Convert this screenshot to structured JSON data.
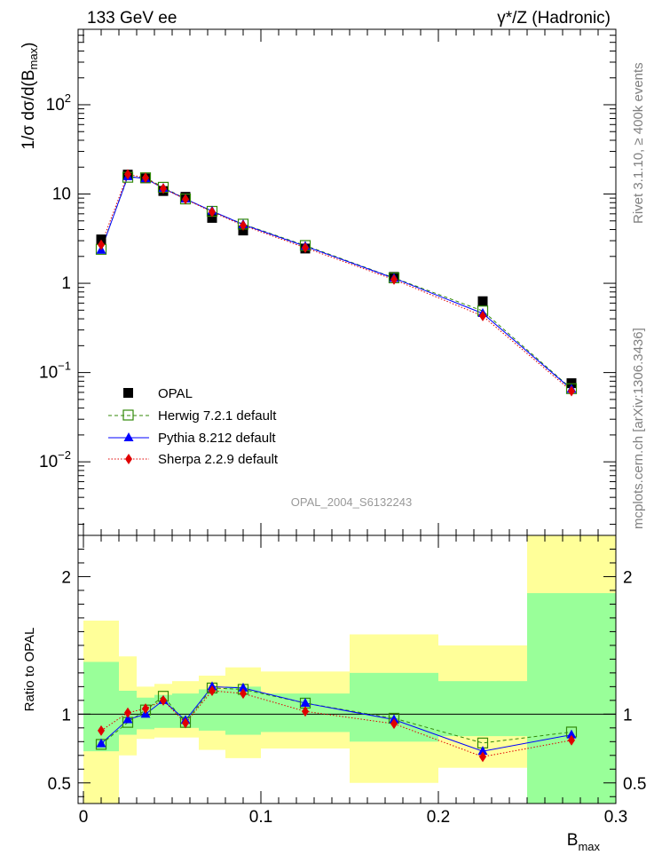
{
  "header": {
    "left": "133 GeV ee",
    "right": "γ*/Z (Hadronic)"
  },
  "side": {
    "rivet": "Rivet 3.1.10, ≥ 400k events",
    "source": "mcplots.cern.ch [arXiv:1306.3436]"
  },
  "watermark": "OPAL_2004_S6132243",
  "main": {
    "ylabel": "1/σ dσ/d(B_max)",
    "yscale": "log",
    "ylim": [
      0.0015,
      700
    ],
    "yticks": [
      {
        "value": 0.01,
        "base": "10",
        "exp": "−2"
      },
      {
        "value": 0.1,
        "base": "10",
        "exp": "−1"
      },
      {
        "value": 1,
        "base": "1",
        "exp": ""
      },
      {
        "value": 10,
        "base": "10",
        "exp": ""
      },
      {
        "value": 100,
        "base": "10",
        "exp": "2"
      }
    ]
  },
  "ratio": {
    "ylabel": "Ratio to OPAL",
    "ylim": [
      0.35,
      2.3
    ],
    "yticks": [
      {
        "value": 0.5,
        "label": "0.5"
      },
      {
        "value": 1,
        "label": "1"
      },
      {
        "value": 2,
        "label": "2"
      }
    ]
  },
  "xaxis": {
    "label": "B",
    "label_sub": "max",
    "xlim": [
      -0.003,
      0.3
    ],
    "ticks": [
      {
        "value": 0,
        "label": "0"
      },
      {
        "value": 0.1,
        "label": "0.1"
      },
      {
        "value": 0.2,
        "label": "0.2"
      },
      {
        "value": 0.3,
        "label": "0.3"
      }
    ]
  },
  "legend": [
    {
      "key": "opal",
      "label": "OPAL"
    },
    {
      "key": "herwig",
      "label": "Herwig 7.2.1 default"
    },
    {
      "key": "pythia",
      "label": "Pythia 8.212 default"
    },
    {
      "key": "sherpa",
      "label": "Sherpa 2.2.9 default"
    }
  ],
  "colors": {
    "herwig": "#338a0a",
    "pythia": "#0000ff",
    "sherpa": "#e00000",
    "band_inner": "#99ff99",
    "band_outer": "#ffff99"
  },
  "chart_data": {
    "type": "scatter",
    "title": "133 GeV ee — γ*/Z (Hadronic)",
    "xlabel": "B_max",
    "ylabel": "1/σ dσ/d(B_max)",
    "bins": [
      [
        0,
        0.02
      ],
      [
        0.02,
        0.03
      ],
      [
        0.03,
        0.04
      ],
      [
        0.04,
        0.05
      ],
      [
        0.05,
        0.065
      ],
      [
        0.065,
        0.08
      ],
      [
        0.08,
        0.1
      ],
      [
        0.1,
        0.15
      ],
      [
        0.15,
        0.2
      ],
      [
        0.2,
        0.25
      ],
      [
        0.25,
        0.3
      ]
    ],
    "x": [
      0.01,
      0.025,
      0.035,
      0.045,
      0.0575,
      0.0725,
      0.09,
      0.125,
      0.175,
      0.225,
      0.275
    ],
    "series": [
      {
        "name": "OPAL",
        "key": "opal",
        "values": [
          3.1,
          16.5,
          15.0,
          10.8,
          9.3,
          5.4,
          3.9,
          2.45,
          1.18,
          0.63,
          0.076
        ]
      },
      {
        "name": "Herwig 7.2.1 default",
        "key": "herwig",
        "values": [
          2.4,
          15.4,
          15.2,
          11.9,
          8.8,
          6.4,
          4.6,
          2.65,
          1.15,
          0.49,
          0.066
        ]
      },
      {
        "name": "Pythia 8.212 default",
        "key": "pythia",
        "values": [
          2.35,
          15.7,
          14.9,
          11.6,
          8.8,
          6.45,
          4.55,
          2.6,
          1.14,
          0.46,
          0.065
        ]
      },
      {
        "name": "Sherpa 2.2.9 default",
        "key": "sherpa",
        "values": [
          2.7,
          16.6,
          15.2,
          11.5,
          8.75,
          6.3,
          4.45,
          2.5,
          1.1,
          0.43,
          0.062
        ]
      }
    ],
    "ratio_series": [
      {
        "key": "herwig",
        "values": [
          0.78,
          0.94,
          1.03,
          1.13,
          0.94,
          1.19,
          1.18,
          1.08,
          0.97,
          0.79,
          0.87
        ]
      },
      {
        "key": "pythia",
        "values": [
          0.785,
          0.96,
          1.0,
          1.1,
          0.955,
          1.2,
          1.19,
          1.08,
          0.96,
          0.73,
          0.85
        ]
      },
      {
        "key": "sherpa",
        "values": [
          0.88,
          1.01,
          1.04,
          1.1,
          0.935,
          1.17,
          1.15,
          1.02,
          0.93,
          0.69,
          0.81
        ]
      }
    ],
    "uncertainty_bands": {
      "inner": [
        [
          0.73,
          1.38
        ],
        [
          0.85,
          1.17
        ],
        [
          0.89,
          1.12
        ],
        [
          0.9,
          1.14
        ],
        [
          0.9,
          1.15
        ],
        [
          0.88,
          1.18
        ],
        [
          0.85,
          1.2
        ],
        [
          0.87,
          1.15
        ],
        [
          0.8,
          1.3
        ],
        [
          0.84,
          1.24
        ],
        [
          0.2,
          1.88
        ]
      ],
      "outer": [
        [
          0.35,
          1.68
        ],
        [
          0.7,
          1.42
        ],
        [
          0.82,
          1.2
        ],
        [
          0.83,
          1.22
        ],
        [
          0.83,
          1.24
        ],
        [
          0.74,
          1.28
        ],
        [
          0.68,
          1.34
        ],
        [
          0.75,
          1.31
        ],
        [
          0.5,
          1.58
        ],
        [
          0.61,
          1.5
        ],
        [
          0.2,
          2.3
        ]
      ]
    }
  }
}
